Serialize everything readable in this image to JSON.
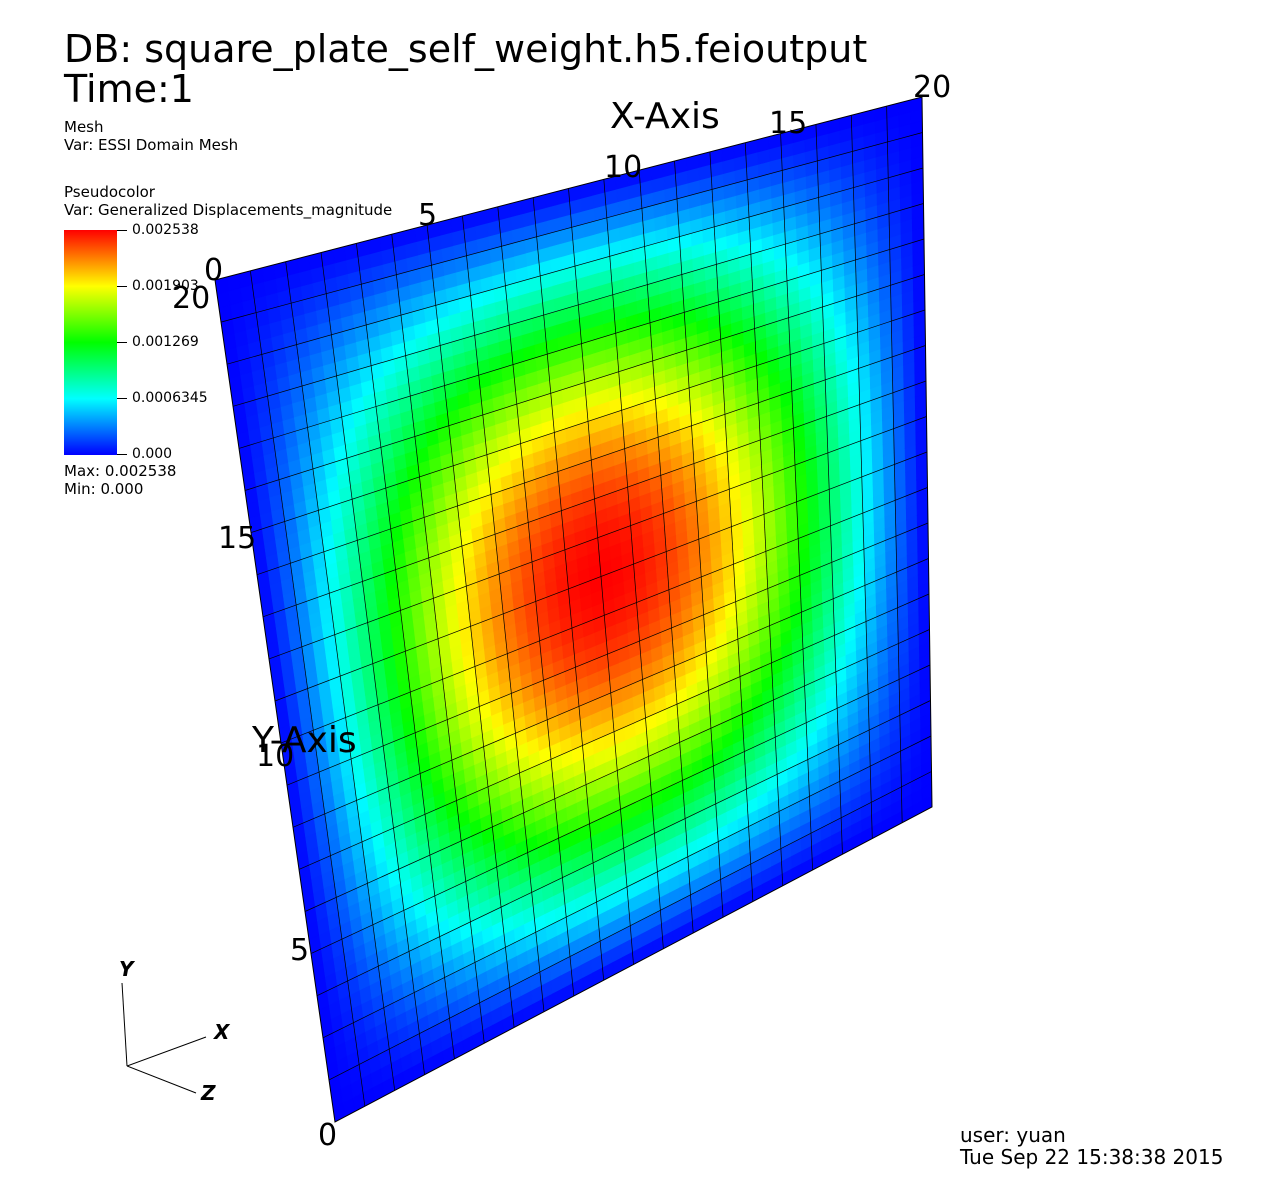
{
  "header": {
    "db": "DB: square_plate_self_weight.h5.feioutput",
    "time": "Time:1"
  },
  "mesh_plot": {
    "title": "Mesh",
    "var": "Var: ESSI Domain Mesh"
  },
  "pseudocolor": {
    "title": "Pseudocolor",
    "var": "Var: Generalized Displacements_magnitude",
    "legend_ticks": [
      "0.002538",
      "0.001903",
      "0.001269",
      "0.0006345",
      "0.000"
    ],
    "max": "Max:  0.002538",
    "min": "Min:  0.000",
    "colormap": [
      "#0000ff",
      "#00ffff",
      "#00ff00",
      "#ffff00",
      "#ff0000"
    ]
  },
  "axes": {
    "x_title": "X-Axis",
    "y_title": "Y-Axis",
    "x_ticks": [
      "0",
      "5",
      "10",
      "15",
      "20"
    ],
    "y_ticks": [
      "0",
      "5",
      "10",
      "15",
      "20"
    ]
  },
  "triad": {
    "y": "Y",
    "x": "X",
    "z": "Z"
  },
  "footer": {
    "user": "user: yuan",
    "date": "Tue Sep 22 15:38:38 2015"
  },
  "mesh": {
    "divisions": 20
  }
}
